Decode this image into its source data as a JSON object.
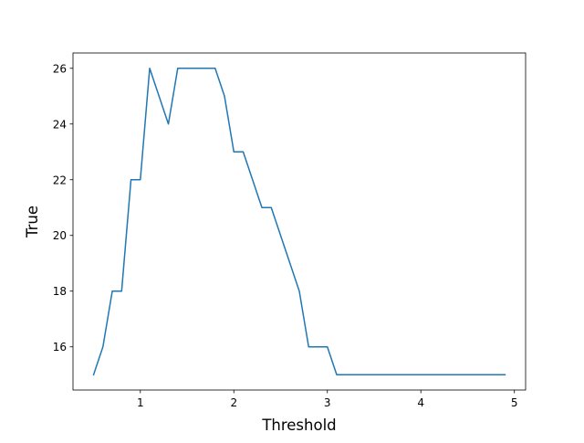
{
  "chart_data": {
    "type": "line",
    "title": "",
    "xlabel": "Threshold",
    "ylabel": "True",
    "xlim": [
      0.28,
      5.12
    ],
    "ylim": [
      14.45,
      26.55
    ],
    "xticks": [
      1,
      2,
      3,
      4,
      5
    ],
    "yticks": [
      16,
      18,
      20,
      22,
      24,
      26
    ],
    "xtick_labels": [
      "1",
      "2",
      "3",
      "4",
      "5"
    ],
    "ytick_labels": [
      "16",
      "18",
      "20",
      "22",
      "24",
      "26"
    ],
    "grid": false,
    "line_color": "#1f77b4",
    "series": [
      {
        "x": [
          0.5,
          0.6,
          0.7,
          0.8,
          0.9,
          1.0,
          1.1,
          1.2,
          1.3,
          1.4,
          1.5,
          1.6,
          1.7,
          1.8,
          1.9,
          2.0,
          2.1,
          2.2,
          2.3,
          2.4,
          2.5,
          2.6,
          2.7,
          2.8,
          2.9,
          3.0,
          3.1,
          3.2,
          3.3,
          3.4,
          3.5,
          3.6,
          3.7,
          3.8,
          3.9,
          4.0,
          4.1,
          4.2,
          4.3,
          4.4,
          4.5,
          4.6,
          4.7,
          4.8,
          4.9
        ],
        "y": [
          15,
          16,
          18,
          18,
          22,
          22,
          26,
          25,
          24,
          26,
          26,
          26,
          26,
          26,
          25,
          23,
          23,
          22,
          21,
          21,
          20,
          19,
          18,
          16,
          16,
          16,
          15,
          15,
          15,
          15,
          15,
          15,
          15,
          15,
          15,
          15,
          15,
          15,
          15,
          15,
          15,
          15,
          15,
          15,
          15
        ]
      }
    ]
  }
}
